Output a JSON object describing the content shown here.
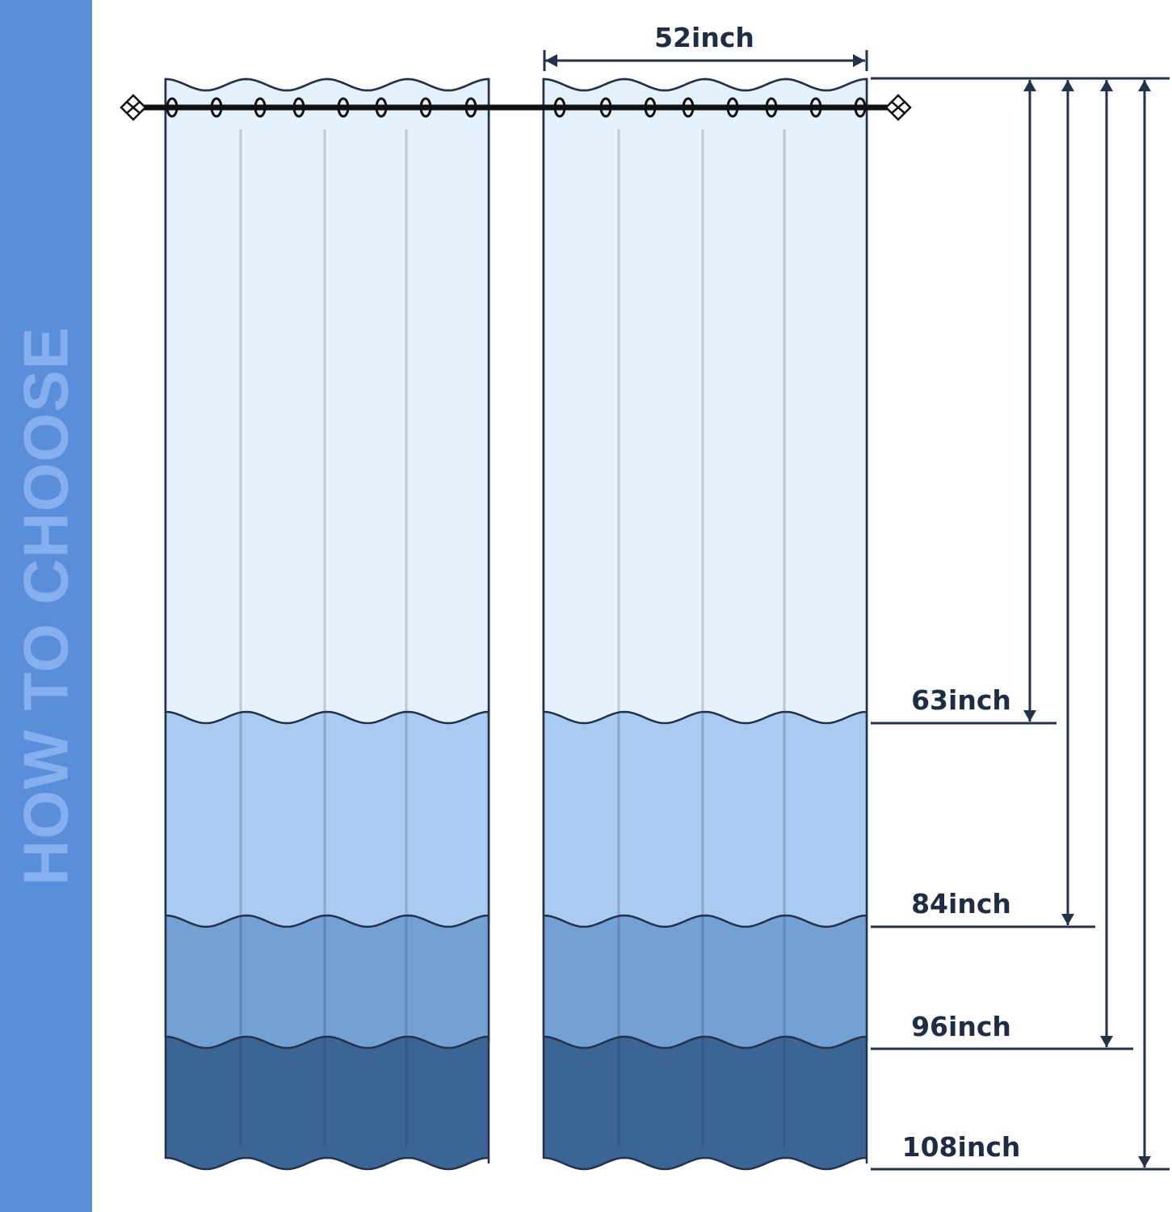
{
  "sidebar": {
    "title": "HOW TO CHOOSE"
  },
  "width_label": "52inch",
  "lengths": [
    {
      "label": "63inch",
      "value": 63
    },
    {
      "label": "84inch",
      "value": 84
    },
    {
      "label": "96inch",
      "value": 96
    },
    {
      "label": "108inch",
      "value": 108
    }
  ],
  "colors": {
    "sidebar": "#5a8ed9",
    "band_63": "#e4f2fd",
    "band_84": "#a9cbf1",
    "band_96": "#74a1d4",
    "band_108": "#3b6595",
    "outline": "#23324a"
  }
}
